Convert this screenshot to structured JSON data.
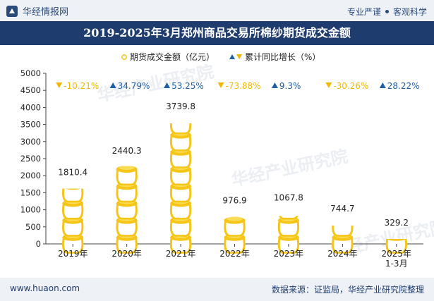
{
  "header": {
    "brand": "华经情报网",
    "tagline_left": "专业严谨",
    "tagline_right": "客观科学"
  },
  "footer": {
    "site": "www.huaon.com",
    "source": "数据来源：证监局，华经产业研究院整理"
  },
  "watermark": "华经产业研究院",
  "colors": {
    "title_bg": "#1f3c6e",
    "pot_gold": "#f5c518",
    "growth_up": "#1f5fa8",
    "growth_down": "#f2b705",
    "axis_text": "#222222"
  },
  "chart_data": {
    "type": "bar",
    "title": "2019-2025年3月郑州商品交易所棉纱期货成交金额",
    "categories": [
      "2019年",
      "2020年",
      "2021年",
      "2022年",
      "2023年",
      "2024年",
      "2025年\n1-3月"
    ],
    "series": [
      {
        "name": "期货成交金额（亿元）",
        "values": [
          1810.4,
          2440.3,
          3739.8,
          976.9,
          1067.8,
          744.7,
          329.2
        ]
      }
    ],
    "value_labels": [
      "1810.4",
      "2440.3",
      "3739.8",
      "976.9",
      "1067.8",
      "744.7",
      "329.2"
    ],
    "growth": {
      "name": "累计同比增长（%）",
      "values": [
        -10.21,
        34.79,
        53.25,
        -73.88,
        9.3,
        -30.26,
        28.22
      ],
      "labels": [
        "-10.21%",
        "34.79%",
        "53.25%",
        "-73.88%",
        "9.3%",
        "-30.26%",
        "28.22%"
      ]
    },
    "ylim": [
      0,
      5000
    ],
    "yticks": [
      0,
      500,
      1000,
      1500,
      2000,
      2500,
      3000,
      3500,
      4000,
      4500,
      5000
    ],
    "legend_position": "top-center",
    "grid": false
  }
}
